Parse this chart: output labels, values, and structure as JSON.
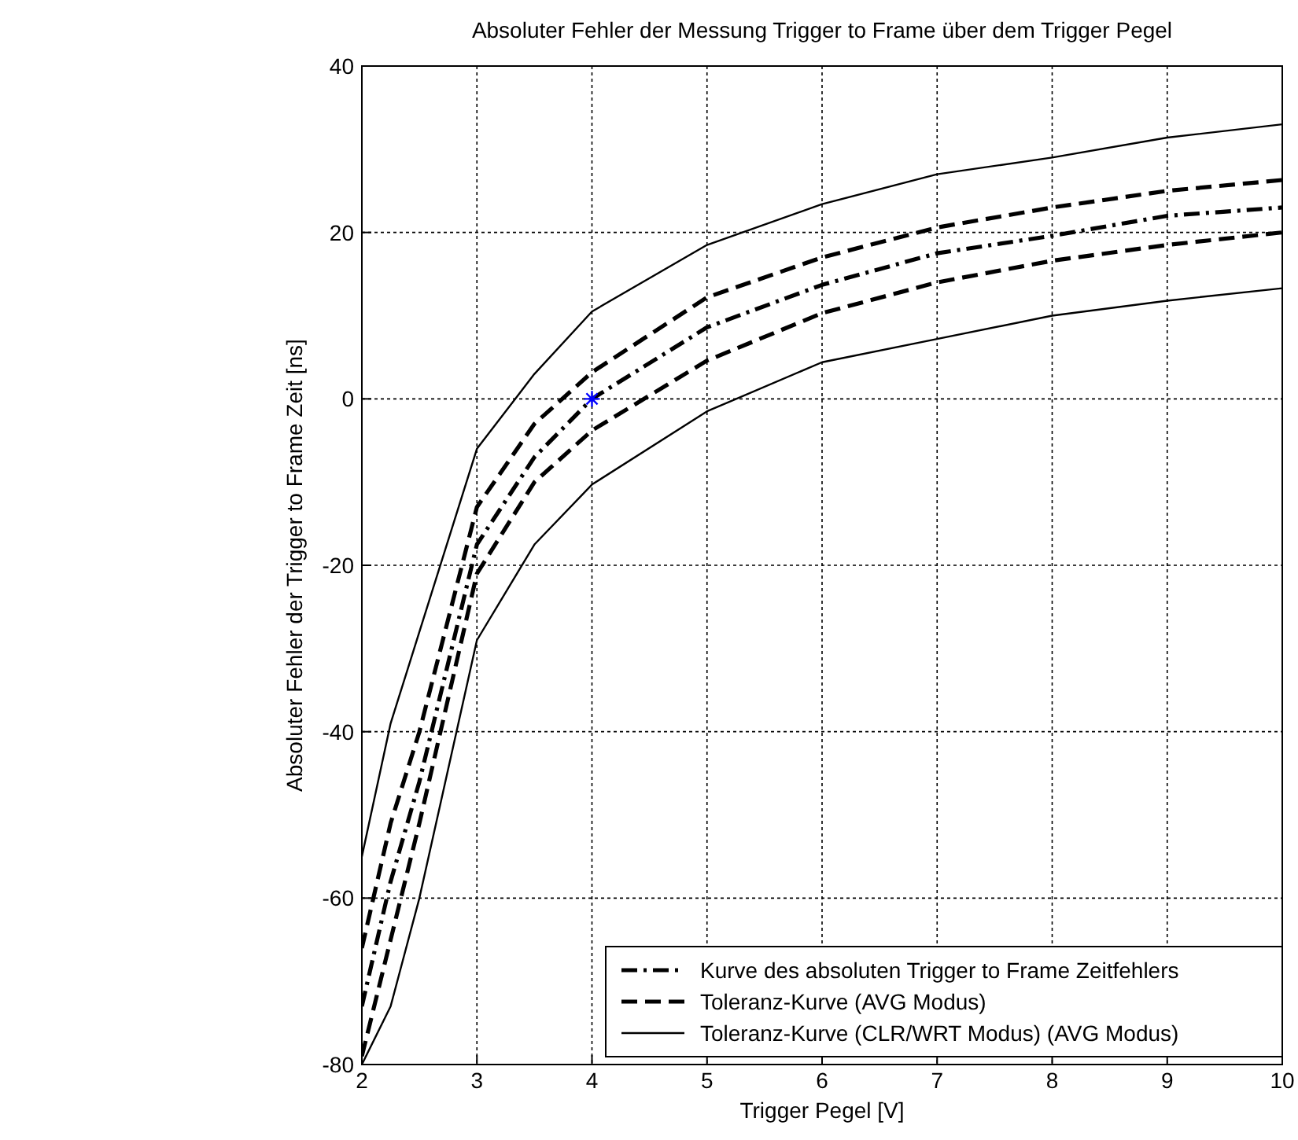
{
  "chart_data": {
    "type": "line",
    "title": "Absoluter Fehler der Messung Trigger to Frame über dem Trigger Pegel",
    "xlabel": "Trigger Pegel [V]",
    "ylabel": "Absoluter Fehler der Trigger to Frame Zeit [ns]",
    "x": [
      2,
      2.25,
      2.5,
      3,
      3.5,
      4,
      5,
      6,
      7,
      8,
      9,
      10
    ],
    "xlim": [
      2,
      10
    ],
    "xticks": [
      2,
      3,
      4,
      5,
      6,
      7,
      8,
      9,
      10
    ],
    "ylim": [
      -80,
      40
    ],
    "yticks": [
      -80,
      -60,
      -40,
      -20,
      0,
      20,
      40
    ],
    "grid": true,
    "legend": "bottom right",
    "series": [
      {
        "name": "Kurve des absoluten Trigger to Frame Zeitfehlers",
        "color": "#000000",
        "line_style": "dashdot",
        "values": [
          -73,
          -58,
          -46,
          -17.5,
          -7,
          0,
          8.6,
          13.7,
          17.5,
          19.6,
          22,
          23
        ]
      },
      {
        "name": "Toleranz-Kurve (AVG Modus)",
        "color": "#000000",
        "line_style": "dashed",
        "values": [
          -66,
          -51,
          -40,
          -13,
          -3,
          3.2,
          12.2,
          17,
          20.6,
          23,
          25,
          26.3
        ]
      },
      {
        "color": "#000000",
        "line_style": "dashed",
        "values": [
          -79,
          -65,
          -51,
          -21,
          -10,
          -3.8,
          4.6,
          10.3,
          14,
          16.6,
          18.5,
          20
        ]
      },
      {
        "name": "Toleranz-Kurve (CLR/WRT Modus) (AVG Modus)",
        "color": "#000000",
        "line_style": "solid",
        "values": [
          -55,
          -39,
          -28,
          -6,
          3,
          10.5,
          18.5,
          23.4,
          27,
          29,
          31.4,
          33
        ]
      },
      {
        "color": "#000000",
        "line_style": "solid",
        "values": [
          -80,
          -73,
          -60,
          -29,
          -17.5,
          -10.3,
          -1.5,
          4.4,
          7.2,
          10,
          11.8,
          13.3
        ]
      },
      {
        "type": "scatter",
        "color": "#0000ff",
        "marker": "cross",
        "x": [
          4
        ],
        "values": [
          0
        ]
      }
    ]
  }
}
